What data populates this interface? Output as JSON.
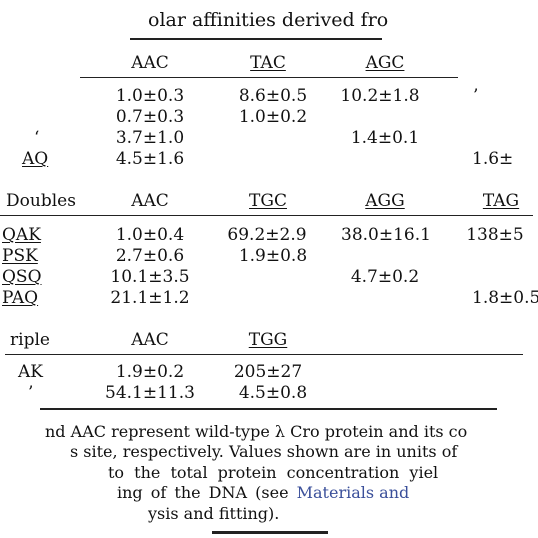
{
  "title": "olar affinities derived fro",
  "section1": {
    "header": {
      "c1": "AAC",
      "c2": "TAC",
      "c3": "AGC"
    },
    "rows": [
      {
        "label": "",
        "c1": "1.0±0.3",
        "c2": "8.6±0.5",
        "c3": "10.2±1.8",
        "c4": ""
      },
      {
        "label": "",
        "c1": "0.7±0.3",
        "c2": "1.0±0.2",
        "c3": "",
        "c4": ""
      },
      {
        "label": "",
        "c1": "3.7±1.0",
        "c2": "",
        "c3": "1.4±0.1",
        "c4": ""
      },
      {
        "label": "AQ",
        "c1": "4.5±1.6",
        "c2": "",
        "c3": "",
        "c4": "1.6±"
      }
    ]
  },
  "section2": {
    "header": {
      "label": "Doubles",
      "c1": "AAC",
      "c2": "TGC",
      "c3": "AGG",
      "c4": "TAG"
    },
    "rows": [
      {
        "label": "QAK",
        "c1": "1.0±0.4",
        "c2": "69.2±2.9",
        "c3": "38.0±16.1",
        "c4": "138±5"
      },
      {
        "label": "PSK",
        "c1": "2.7±0.6",
        "c2": "1.9±0.8",
        "c3": "",
        "c4": ""
      },
      {
        "label": "QSQ",
        "c1": "10.1±3.5",
        "c2": "",
        "c3": "4.7±0.2",
        "c4": ""
      },
      {
        "label": "PAQ",
        "c1": "21.1±1.2",
        "c2": "",
        "c3": "",
        "c4": "1.8±0.5"
      }
    ]
  },
  "section3": {
    "header": {
      "label": "riple",
      "c1": "AAC",
      "c2": "TGG"
    },
    "rows": [
      {
        "label": "AK",
        "c1": "1.9±0.2",
        "c2": "205±27"
      },
      {
        "label": "",
        "c1": "54.1±11.3",
        "c2": "4.5±0.8"
      }
    ]
  },
  "caption": {
    "line1": "nd AAC represent wild-type λ Cro protein and its co",
    "line2": "s site, respectively. Values shown are in units of",
    "line3": "to the total protein concentration yiel",
    "line4a": "ing of the DNA (see ",
    "line4b": "Materials and",
    "line5": "ysis and fitting)."
  }
}
